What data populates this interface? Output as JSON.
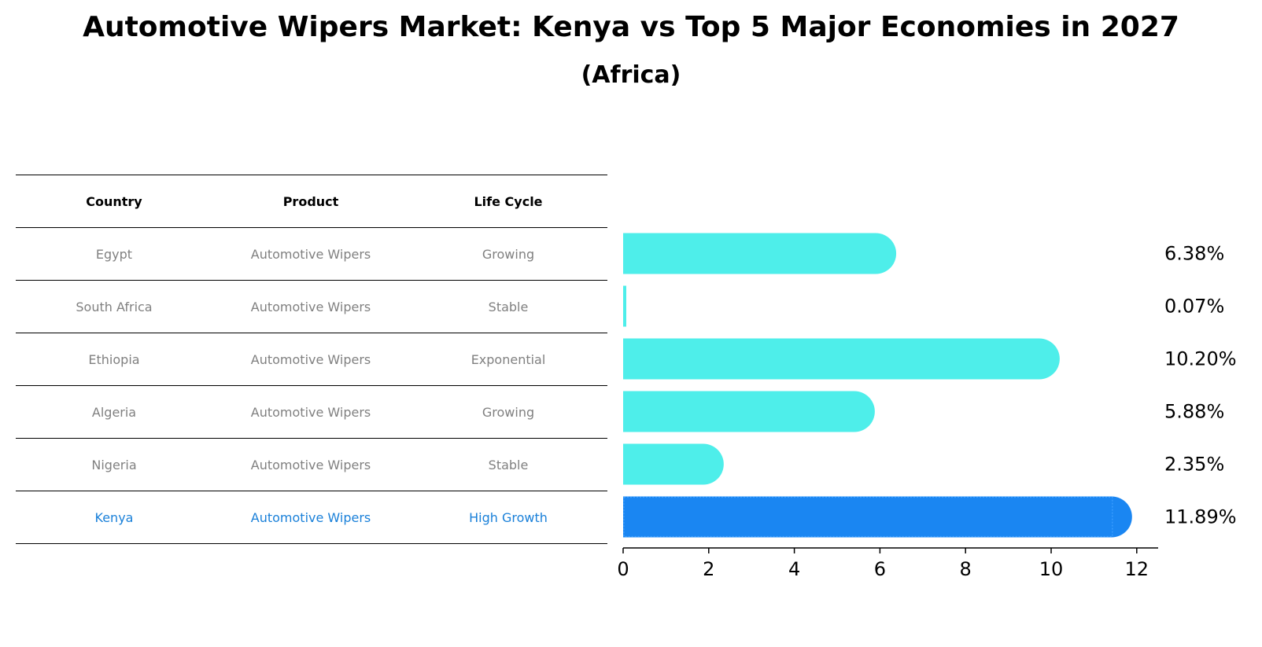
{
  "title": "Automotive Wipers Market: Kenya vs Top 5 Major Economies in 2027",
  "subtitle": "(Africa)",
  "table": {
    "headers": [
      "Country",
      "Product",
      "Life Cycle"
    ],
    "rows": [
      {
        "country": "Egypt",
        "product": "Automotive Wipers",
        "life_cycle": "Growing"
      },
      {
        "country": "South Africa",
        "product": "Automotive Wipers",
        "life_cycle": "Stable"
      },
      {
        "country": "Ethiopia",
        "product": "Automotive Wipers",
        "life_cycle": "Exponential"
      },
      {
        "country": "Algeria",
        "product": "Automotive Wipers",
        "life_cycle": "Growing"
      },
      {
        "country": "Nigeria",
        "product": "Automotive Wipers",
        "life_cycle": "Stable"
      },
      {
        "country": "Kenya",
        "product": "Automotive Wipers",
        "life_cycle": "High Growth"
      }
    ]
  },
  "colors": {
    "bar": "#4eeeea",
    "highlight_bar": "#1a86f2",
    "highlight_text": "#1a80d9",
    "muted_text": "#808080"
  },
  "chart_data": {
    "type": "bar",
    "orientation": "horizontal",
    "categories": [
      "Egypt",
      "South Africa",
      "Ethiopia",
      "Algeria",
      "Nigeria",
      "Kenya"
    ],
    "values": [
      6.38,
      0.07,
      10.2,
      5.88,
      2.35,
      11.89
    ],
    "value_labels": [
      "6.38%",
      "0.07%",
      "10.20%",
      "5.88%",
      "2.35%",
      "11.89%"
    ],
    "highlight": "Kenya",
    "xlim": [
      0,
      12.5
    ],
    "xticks": [
      0,
      2,
      4,
      6,
      8,
      10,
      12
    ],
    "xlabel": "",
    "ylabel": "",
    "grid": false
  }
}
